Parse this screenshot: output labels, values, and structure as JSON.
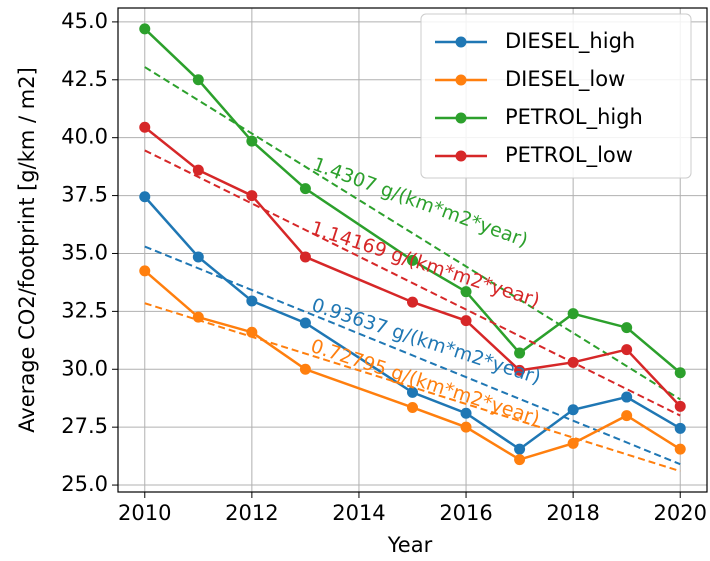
{
  "chart_data": {
    "type": "line",
    "x_label": "Year",
    "y_label": "Average CO2/footprint [g/km / m2]",
    "x": [
      2010,
      2011,
      2012,
      2013,
      2015,
      2016,
      2017,
      2018,
      2019,
      2020
    ],
    "series": [
      {
        "name": "DIESEL_high",
        "color": "#1f77b4",
        "values": [
          37.45,
          34.85,
          32.95,
          32.0,
          29.0,
          28.1,
          26.55,
          28.25,
          28.8,
          27.45
        ],
        "trend_x": [
          2010,
          2020
        ],
        "trend": [
          35.3,
          25.9
        ],
        "trend_label": "0.93637 g/(km*m2*year)"
      },
      {
        "name": "DIESEL_low",
        "color": "#ff7f0e",
        "values": [
          34.25,
          32.25,
          31.6,
          30.0,
          28.35,
          27.5,
          26.1,
          26.8,
          28.0,
          26.55
        ],
        "trend_x": [
          2010,
          2020
        ],
        "trend": [
          32.85,
          25.6
        ],
        "trend_label": "0.72795 g/(km*m2*year)"
      },
      {
        "name": "PETROL_high",
        "color": "#2ca02c",
        "values": [
          44.7,
          42.5,
          39.85,
          37.8,
          34.7,
          33.35,
          30.7,
          32.4,
          31.8,
          29.85
        ],
        "trend_x": [
          2010,
          2020
        ],
        "trend": [
          43.05,
          28.7
        ],
        "trend_label": "1.4307 g/(km*m2*year)"
      },
      {
        "name": "PETROL_low",
        "color": "#d62728",
        "values": [
          40.45,
          38.6,
          37.5,
          34.85,
          32.9,
          32.1,
          29.95,
          30.3,
          30.85,
          28.4
        ],
        "trend_x": [
          2010,
          2020
        ],
        "trend": [
          39.45,
          28.0
        ],
        "trend_label": "1.14169 g/(km*m2*year)"
      }
    ],
    "xlim": [
      2009.5,
      2020.5
    ],
    "ylim": [
      24.7,
      45.6
    ],
    "xticks": [
      2010,
      2012,
      2014,
      2016,
      2018,
      2020
    ],
    "yticks": [
      {
        "value": 25,
        "label": "25.0"
      },
      27.5,
      {
        "value": 30,
        "label": "30.0"
      },
      32.5,
      {
        "value": 35,
        "label": "35.0"
      },
      37.5,
      {
        "value": 40,
        "label": "40.0"
      },
      42.5,
      {
        "value": 45,
        "label": "45.0"
      }
    ],
    "grid": true,
    "legend": "upper right"
  }
}
